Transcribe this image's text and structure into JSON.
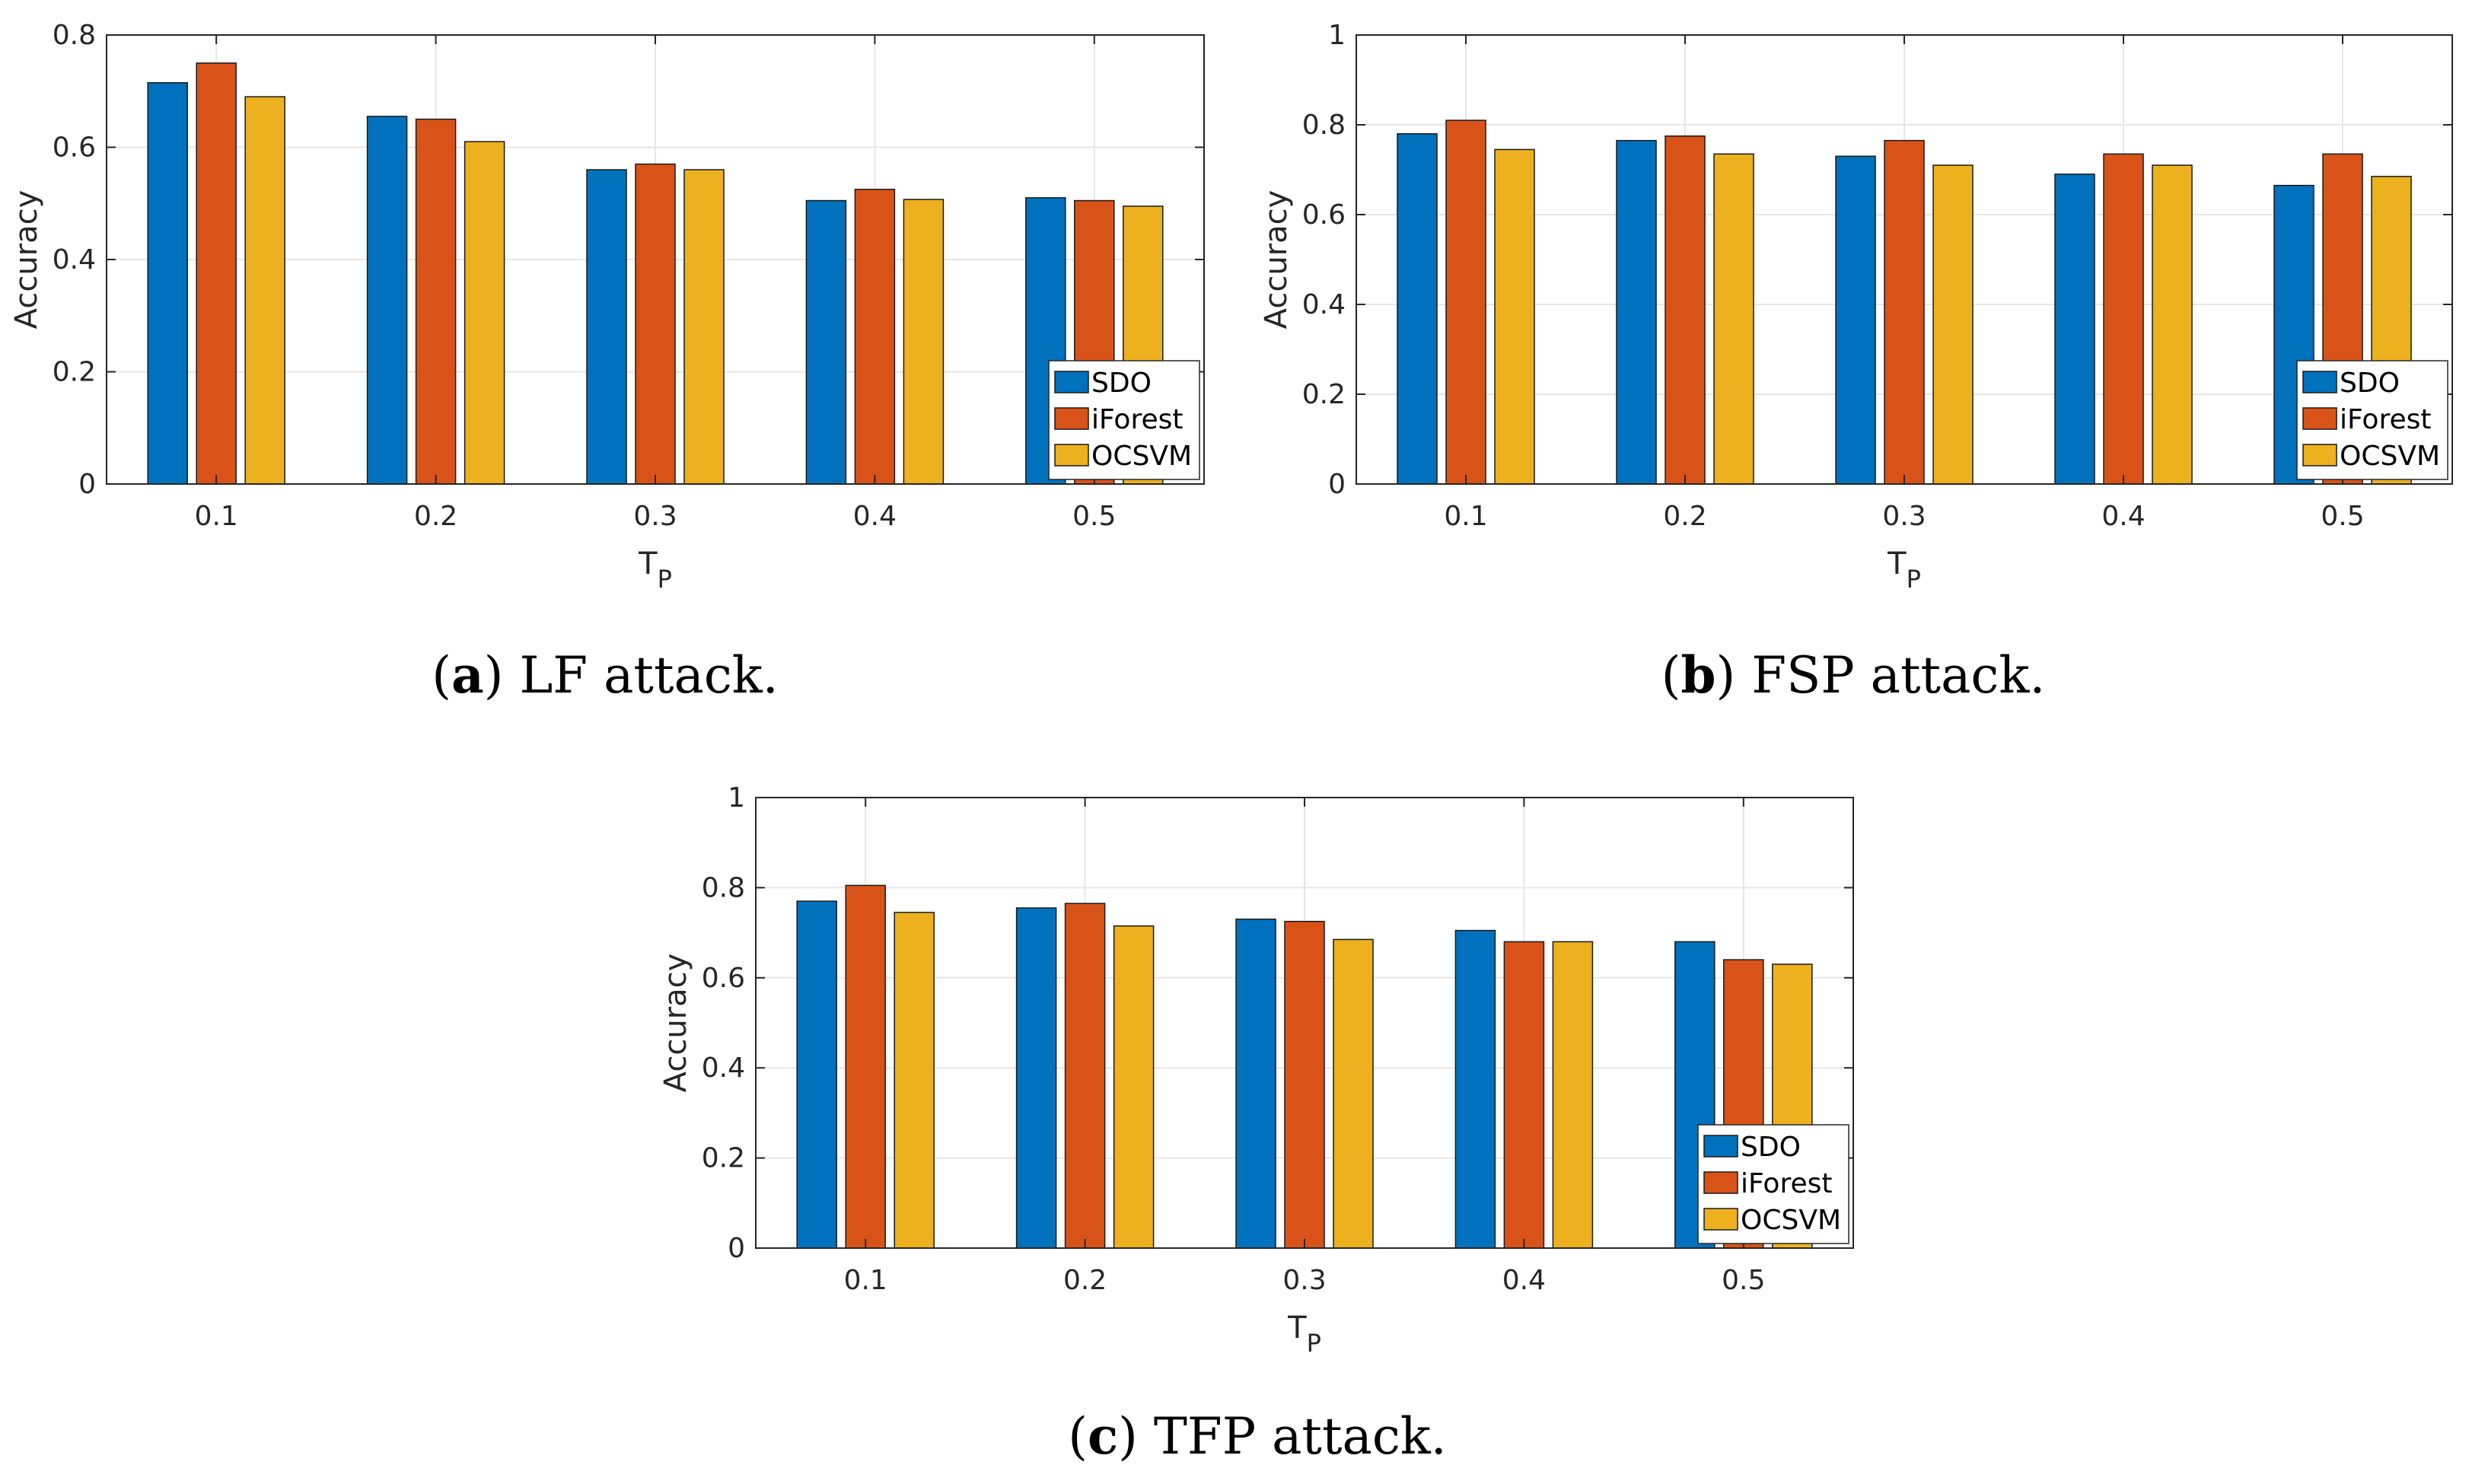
{
  "chart_data": [
    {
      "type": "bar",
      "panel_label": "a",
      "caption": "LF attack.",
      "categories": [
        "0.1",
        "0.2",
        "0.3",
        "0.4",
        "0.5"
      ],
      "series": [
        {
          "name": "SDO",
          "values": [
            0.715,
            0.655,
            0.56,
            0.505,
            0.51
          ]
        },
        {
          "name": "iForest",
          "values": [
            0.75,
            0.65,
            0.57,
            0.525,
            0.505
          ]
        },
        {
          "name": "OCSVM",
          "values": [
            0.69,
            0.61,
            0.56,
            0.507,
            0.495
          ]
        }
      ],
      "xlabel": "T",
      "xlabel_sub": "P",
      "ylabel": "Accuracy",
      "ylim": [
        0,
        0.8
      ],
      "yticks": [
        "0",
        "0.2",
        "0.4",
        "0.6",
        "0.8"
      ],
      "grid": true,
      "legend": "bottom-right"
    },
    {
      "type": "bar",
      "panel_label": "b",
      "caption": "FSP attack.",
      "categories": [
        "0.1",
        "0.2",
        "0.3",
        "0.4",
        "0.5"
      ],
      "series": [
        {
          "name": "SDO",
          "values": [
            0.78,
            0.765,
            0.73,
            0.69,
            0.665
          ]
        },
        {
          "name": "iForest",
          "values": [
            0.81,
            0.775,
            0.765,
            0.735,
            0.735
          ]
        },
        {
          "name": "OCSVM",
          "values": [
            0.745,
            0.735,
            0.71,
            0.71,
            0.685
          ]
        }
      ],
      "xlabel": "T",
      "xlabel_sub": "P",
      "ylabel": "Accuracy",
      "ylim": [
        0,
        1
      ],
      "yticks": [
        "0",
        "0.2",
        "0.4",
        "0.6",
        "0.8",
        "1"
      ],
      "grid": true,
      "legend": "bottom-right"
    },
    {
      "type": "bar",
      "panel_label": "c",
      "caption": "TFP attack.",
      "categories": [
        "0.1",
        "0.2",
        "0.3",
        "0.4",
        "0.5"
      ],
      "series": [
        {
          "name": "SDO",
          "values": [
            0.77,
            0.755,
            0.73,
            0.705,
            0.68
          ]
        },
        {
          "name": "iForest",
          "values": [
            0.805,
            0.765,
            0.725,
            0.68,
            0.64
          ]
        },
        {
          "name": "OCSVM",
          "values": [
            0.745,
            0.715,
            0.685,
            0.68,
            0.63
          ]
        }
      ],
      "xlabel": "T",
      "xlabel_sub": "P",
      "ylabel": "Accuracy",
      "ylim": [
        0,
        1
      ],
      "yticks": [
        "0",
        "0.2",
        "0.4",
        "0.6",
        "0.8",
        "1"
      ],
      "grid": true,
      "legend": "bottom-right"
    }
  ],
  "colors": {
    "SDO": "#0072BD",
    "iForest": "#D95319",
    "OCSVM": "#EDB120"
  }
}
